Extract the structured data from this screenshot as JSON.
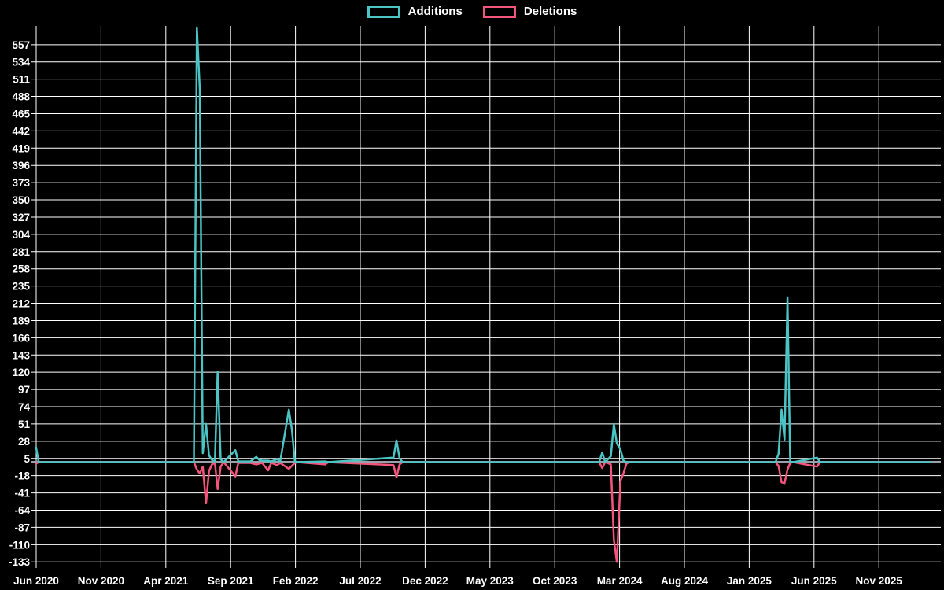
{
  "chart_data": {
    "type": "line",
    "title": "",
    "xlabel": "",
    "ylabel": "",
    "background_color": "#000000",
    "grid_color": "#FFFFFF",
    "zero_line_color": "#98A2A8",
    "text_color": "#FFFFFF",
    "grid": true,
    "legend_position": "top-center",
    "ylim": [
      -138,
      582
    ],
    "y_ticks": [
      -133,
      -110,
      -87,
      -64,
      -41,
      -18,
      5,
      28,
      51,
      74,
      97,
      120,
      143,
      166,
      189,
      212,
      235,
      258,
      281,
      304,
      327,
      350,
      373,
      396,
      419,
      442,
      465,
      488,
      511,
      534,
      557
    ],
    "x_start_date": "2020-06-01",
    "x_ticks": [
      {
        "label": "Jun 2020",
        "months_after_start": 0
      },
      {
        "label": "Nov 2020",
        "months_after_start": 5
      },
      {
        "label": "Apr 2021",
        "months_after_start": 10
      },
      {
        "label": "Sep 2021",
        "months_after_start": 15
      },
      {
        "label": "Feb 2022",
        "months_after_start": 20
      },
      {
        "label": "Jul 2022",
        "months_after_start": 25
      },
      {
        "label": "Dec 2022",
        "months_after_start": 30
      },
      {
        "label": "May 2023",
        "months_after_start": 35
      },
      {
        "label": "Oct 2023",
        "months_after_start": 40
      },
      {
        "label": "Mar 2024",
        "months_after_start": 45
      },
      {
        "label": "Aug 2024",
        "months_after_start": 50
      },
      {
        "label": "Jan 2025",
        "months_after_start": 55
      },
      {
        "label": "Jun 2025",
        "months_after_start": 60
      },
      {
        "label": "Nov 2025",
        "months_after_start": 65
      }
    ],
    "series": [
      {
        "name": "Additions",
        "color": "#4AC4C4"
      },
      {
        "name": "Deletions",
        "color": "#F4557D"
      }
    ],
    "rows_format": [
      "date",
      "additions",
      "deletions"
    ],
    "rows": [
      [
        "2020-05-31",
        20,
        -2
      ],
      [
        "2020-06-07",
        0,
        0
      ],
      [
        "2021-06-06",
        0,
        0
      ],
      [
        "2021-06-13",
        580,
        -10
      ],
      [
        "2021-06-20",
        497,
        -15
      ],
      [
        "2021-06-27",
        12,
        -6
      ],
      [
        "2021-07-04",
        51,
        -55
      ],
      [
        "2021-07-11",
        9,
        -12
      ],
      [
        "2021-07-18",
        3,
        -3
      ],
      [
        "2021-07-25",
        1,
        -1
      ],
      [
        "2021-08-01",
        121,
        -36
      ],
      [
        "2021-08-08",
        4,
        -6
      ],
      [
        "2021-08-15",
        0,
        0
      ],
      [
        "2021-09-12",
        16,
        -19
      ],
      [
        "2021-09-19",
        1,
        -1
      ],
      [
        "2021-10-17",
        1,
        -1
      ],
      [
        "2021-10-31",
        7,
        -3
      ],
      [
        "2021-11-07",
        3,
        -2
      ],
      [
        "2021-11-14",
        2,
        -1
      ],
      [
        "2021-11-28",
        2,
        -11
      ],
      [
        "2021-12-05",
        1,
        -1
      ],
      [
        "2021-12-19",
        4,
        -4
      ],
      [
        "2021-12-26",
        1,
        -1
      ],
      [
        "2022-01-16",
        70,
        -9
      ],
      [
        "2022-01-23",
        44,
        -5
      ],
      [
        "2022-01-30",
        1,
        -1
      ],
      [
        "2022-02-06",
        0,
        0
      ],
      [
        "2022-04-10",
        1,
        -3
      ],
      [
        "2022-04-17",
        0,
        0
      ],
      [
        "2022-09-18",
        6,
        -4
      ],
      [
        "2022-09-25",
        29,
        -20
      ],
      [
        "2022-10-02",
        5,
        -3
      ],
      [
        "2022-10-09",
        0,
        0
      ],
      [
        "2024-01-14",
        0,
        0
      ],
      [
        "2024-01-21",
        13,
        -8
      ],
      [
        "2024-01-28",
        0,
        0
      ],
      [
        "2024-02-11",
        8,
        -3
      ],
      [
        "2024-02-18",
        51,
        -103
      ],
      [
        "2024-02-25",
        25,
        -133
      ],
      [
        "2024-03-03",
        17,
        -25
      ],
      [
        "2024-03-10",
        2,
        -15
      ],
      [
        "2024-03-17",
        0,
        -2
      ],
      [
        "2024-03-24",
        0,
        0
      ],
      [
        "2025-03-02",
        0,
        0
      ],
      [
        "2025-03-09",
        11,
        -5
      ],
      [
        "2025-03-16",
        70,
        -27
      ],
      [
        "2025-03-23",
        30,
        -28
      ],
      [
        "2025-03-30",
        220,
        -10
      ],
      [
        "2025-04-06",
        1,
        -1
      ],
      [
        "2025-04-13",
        0,
        0
      ],
      [
        "2025-06-08",
        6,
        -6
      ],
      [
        "2025-06-15",
        0,
        0
      ],
      [
        "2026-03-01",
        0,
        0
      ]
    ]
  }
}
